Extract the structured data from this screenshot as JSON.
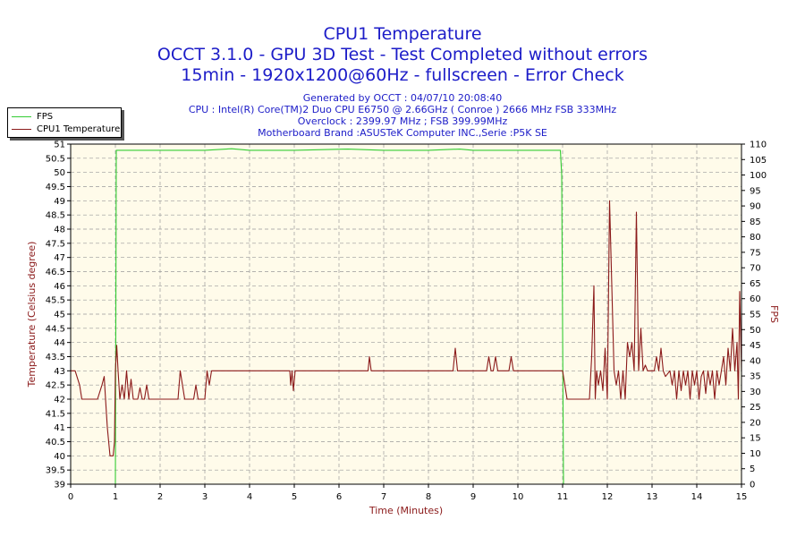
{
  "header": {
    "title": "CPU1 Temperature",
    "line2": "OCCT 3.1.0 - GPU 3D Test - Test Completed without errors",
    "line3": "15min - 1920x1200@60Hz - fullscreen - Error Check",
    "info1": "Generated by OCCT : 04/07/10 20:08:40",
    "info2": "CPU : Intel(R) Core(TM)2 Duo CPU E6750 @ 2.66GHz ( Conroe ) 2666 MHz FSB 333MHz",
    "info3": "Overclock : 2399.97 MHz ; FSB 399.99MHz",
    "info4": "Motherboard Brand :ASUSTeK Computer INC.,Serie :P5K SE"
  },
  "colors": {
    "fps": "#33cc33",
    "temp": "#8b1a1a",
    "plot_bg": "#fffbea",
    "title": "#1c1cc8"
  },
  "chart_data": {
    "type": "line",
    "title": "CPU1 Temperature",
    "xlabel": "Time (Minutes)",
    "ylabel": "Temperature (Celsius degree)",
    "y2label": "FPS",
    "xlim": [
      0,
      15
    ],
    "ylim": [
      39,
      51
    ],
    "y2lim": [
      0,
      110
    ],
    "x_ticks": [
      "0",
      "1",
      "2",
      "3",
      "4",
      "5",
      "6",
      "7",
      "8",
      "9",
      "10",
      "11",
      "12",
      "13",
      "14",
      "15"
    ],
    "y_ticks": [
      "39",
      "39.5",
      "40",
      "40.5",
      "41",
      "41.5",
      "42",
      "42.5",
      "43",
      "43.5",
      "44",
      "44.5",
      "45",
      "45.5",
      "46",
      "46.5",
      "47",
      "47.5",
      "48",
      "48.5",
      "49",
      "49.5",
      "50",
      "50.5",
      "51"
    ],
    "y2_ticks": [
      "0",
      "5",
      "10",
      "15",
      "20",
      "25",
      "30",
      "35",
      "40",
      "45",
      "50",
      "55",
      "60",
      "65",
      "70",
      "75",
      "80",
      "85",
      "90",
      "95",
      "100",
      "105",
      "110"
    ],
    "grid": true,
    "legend_position": "top-left, outside plot",
    "series": [
      {
        "name": "FPS",
        "axis": "right",
        "points": [
          [
            0,
            0
          ],
          [
            1.0,
            0
          ],
          [
            1.02,
            108
          ],
          [
            2,
            108
          ],
          [
            3,
            108
          ],
          [
            3.6,
            108.5
          ],
          [
            4,
            108
          ],
          [
            5,
            108
          ],
          [
            6.2,
            108.4
          ],
          [
            7,
            108
          ],
          [
            8,
            108
          ],
          [
            8.7,
            108.4
          ],
          [
            9,
            108
          ],
          [
            10,
            108
          ],
          [
            10.95,
            108
          ],
          [
            10.98,
            100
          ],
          [
            11.02,
            0
          ],
          [
            15,
            0
          ]
        ]
      },
      {
        "name": "CPU1 Temperature",
        "axis": "left",
        "points": [
          [
            0,
            43
          ],
          [
            0.1,
            43
          ],
          [
            0.2,
            42.5
          ],
          [
            0.25,
            42
          ],
          [
            0.6,
            42
          ],
          [
            0.7,
            42.5
          ],
          [
            0.75,
            42.8
          ],
          [
            0.78,
            42
          ],
          [
            0.82,
            41
          ],
          [
            0.85,
            40.5
          ],
          [
            0.88,
            40
          ],
          [
            0.95,
            40
          ],
          [
            0.98,
            40.5
          ],
          [
            1.0,
            43
          ],
          [
            1.03,
            43.9
          ],
          [
            1.06,
            43
          ],
          [
            1.1,
            42
          ],
          [
            1.15,
            42.5
          ],
          [
            1.2,
            42
          ],
          [
            1.25,
            43
          ],
          [
            1.3,
            42
          ],
          [
            1.35,
            42.7
          ],
          [
            1.4,
            42
          ],
          [
            1.5,
            42
          ],
          [
            1.55,
            42.4
          ],
          [
            1.6,
            42
          ],
          [
            1.65,
            42
          ],
          [
            1.7,
            42.5
          ],
          [
            1.75,
            42
          ],
          [
            2.4,
            42
          ],
          [
            2.45,
            43
          ],
          [
            2.5,
            42.5
          ],
          [
            2.55,
            42
          ],
          [
            2.75,
            42
          ],
          [
            2.8,
            42.5
          ],
          [
            2.85,
            42
          ],
          [
            3.0,
            42
          ],
          [
            3.05,
            43
          ],
          [
            3.1,
            42.5
          ],
          [
            3.15,
            43
          ],
          [
            3.3,
            43
          ],
          [
            4.9,
            43
          ],
          [
            4.92,
            42.5
          ],
          [
            4.95,
            43
          ],
          [
            4.98,
            42.3
          ],
          [
            5.02,
            43
          ],
          [
            6.6,
            43
          ],
          [
            6.65,
            43
          ],
          [
            6.68,
            43.5
          ],
          [
            6.72,
            43
          ],
          [
            8.55,
            43
          ],
          [
            8.6,
            43.8
          ],
          [
            8.65,
            43
          ],
          [
            9.3,
            43
          ],
          [
            9.35,
            43.5
          ],
          [
            9.4,
            43
          ],
          [
            9.45,
            43
          ],
          [
            9.5,
            43.5
          ],
          [
            9.55,
            43
          ],
          [
            9.8,
            43
          ],
          [
            9.85,
            43.5
          ],
          [
            9.9,
            43
          ],
          [
            11.0,
            43
          ],
          [
            11.05,
            42.5
          ],
          [
            11.1,
            42
          ],
          [
            11.6,
            42
          ],
          [
            11.65,
            43.5
          ],
          [
            11.7,
            46
          ],
          [
            11.73,
            42
          ],
          [
            11.76,
            43
          ],
          [
            11.8,
            42.5
          ],
          [
            11.85,
            43
          ],
          [
            11.9,
            42.3
          ],
          [
            11.95,
            43.8
          ],
          [
            12.0,
            42
          ],
          [
            12.05,
            49
          ],
          [
            12.1,
            46
          ],
          [
            12.15,
            43
          ],
          [
            12.2,
            42.5
          ],
          [
            12.25,
            43
          ],
          [
            12.3,
            42
          ],
          [
            12.35,
            43
          ],
          [
            12.4,
            42
          ],
          [
            12.45,
            44
          ],
          [
            12.5,
            43.5
          ],
          [
            12.55,
            44
          ],
          [
            12.6,
            43
          ],
          [
            12.65,
            48.6
          ],
          [
            12.7,
            43
          ],
          [
            12.75,
            44.5
          ],
          [
            12.8,
            43
          ],
          [
            12.85,
            43.2
          ],
          [
            12.9,
            43
          ],
          [
            13.0,
            43
          ],
          [
            13.05,
            43
          ],
          [
            13.1,
            43.5
          ],
          [
            13.15,
            43
          ],
          [
            13.2,
            43.8
          ],
          [
            13.25,
            43
          ],
          [
            13.3,
            42.8
          ],
          [
            13.4,
            43
          ],
          [
            13.45,
            42.5
          ],
          [
            13.5,
            43
          ],
          [
            13.55,
            42
          ],
          [
            13.6,
            43
          ],
          [
            13.65,
            42.3
          ],
          [
            13.7,
            43
          ],
          [
            13.75,
            42.5
          ],
          [
            13.8,
            43
          ],
          [
            13.85,
            42
          ],
          [
            13.9,
            43
          ],
          [
            13.95,
            42.5
          ],
          [
            14.0,
            43
          ],
          [
            14.05,
            42
          ],
          [
            14.1,
            42.8
          ],
          [
            14.15,
            43
          ],
          [
            14.2,
            42.2
          ],
          [
            14.25,
            43
          ],
          [
            14.3,
            42.5
          ],
          [
            14.35,
            43
          ],
          [
            14.4,
            42
          ],
          [
            14.45,
            43
          ],
          [
            14.5,
            42.5
          ],
          [
            14.55,
            43
          ],
          [
            14.6,
            43.5
          ],
          [
            14.65,
            42.5
          ],
          [
            14.7,
            43.8
          ],
          [
            14.75,
            43
          ],
          [
            14.8,
            44.5
          ],
          [
            14.85,
            43
          ],
          [
            14.9,
            44
          ],
          [
            14.93,
            42
          ],
          [
            14.96,
            45.8
          ],
          [
            15.0,
            43
          ]
        ]
      }
    ]
  }
}
